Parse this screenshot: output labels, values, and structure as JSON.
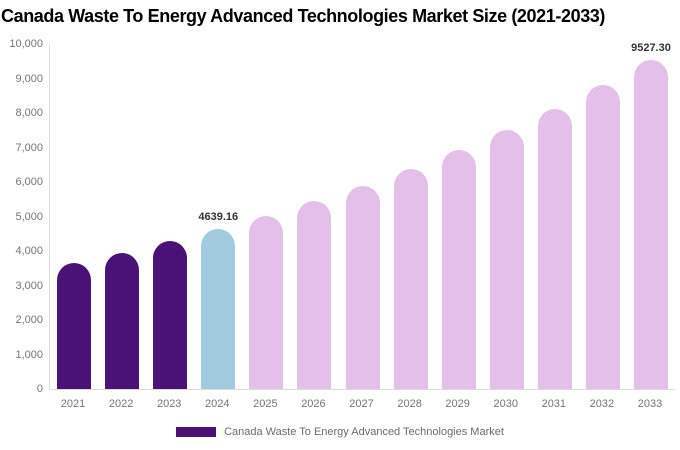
{
  "chart_data": {
    "type": "bar",
    "title": "Canada Waste To Energy Advanced Technologies Market Size (2021-2033)",
    "categories": [
      "2021",
      "2022",
      "2023",
      "2024",
      "2025",
      "2026",
      "2027",
      "2028",
      "2029",
      "2030",
      "2031",
      "2032",
      "2033"
    ],
    "values": [
      3650,
      3953,
      4283,
      4639.16,
      5026,
      5445,
      5898,
      6390,
      6922,
      7499,
      8123,
      8800,
      9527.3
    ],
    "segments": [
      "historical",
      "historical",
      "historical",
      "current",
      "forecast",
      "forecast",
      "forecast",
      "forecast",
      "forecast",
      "forecast",
      "forecast",
      "forecast",
      "forecast"
    ],
    "data_labels": [
      "",
      "",
      "",
      "4639.16",
      "",
      "",
      "",
      "",
      "",
      "",
      "",
      "",
      "9527.30"
    ],
    "xlabel": "",
    "ylabel": "",
    "ylim": [
      0,
      10000
    ],
    "y_tick_step": 1000,
    "y_tick_labels": [
      "0",
      "1,000",
      "2,000",
      "3,000",
      "4,000",
      "5,000",
      "6,000",
      "7,000",
      "8,000",
      "9,000",
      "10,000"
    ],
    "grid": "off",
    "legend_position": "bottom-center",
    "legend": [
      {
        "label": "Canada Waste To Energy Advanced Technologies Market",
        "color": "#4A1277"
      }
    ],
    "colors": {
      "historical": "#4A1277",
      "current": "#A2CBE0",
      "forecast": "#E4BFE9",
      "axis_line": "#DCDCDC",
      "tick_text": "#757575",
      "value_label_text": "#333333",
      "title_text": "#000000",
      "legend_text": "#6B6B6B"
    }
  }
}
